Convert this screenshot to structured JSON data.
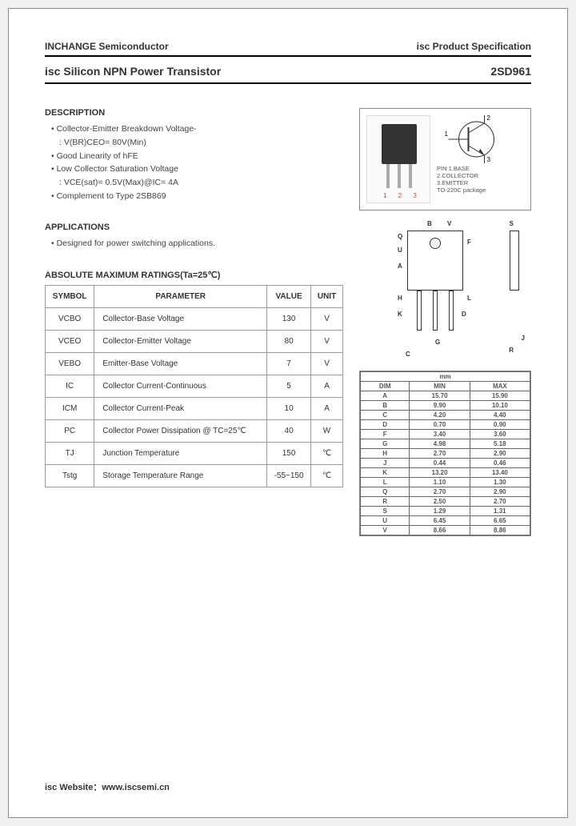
{
  "header": {
    "company": "INCHANGE Semiconductor",
    "docType": "isc Product Specification",
    "productTitle": "isc Silicon NPN Power Transistor",
    "partNumber": "2SD961"
  },
  "description": {
    "title": "DESCRIPTION",
    "items": [
      "Collector-Emitter Breakdown Voltage-",
      "V(BR)CEO= 80V(Min)",
      "Good Linearity of hFE",
      "Low Collector Saturation Voltage",
      "VCE(sat)= 0.5V(Max)@IC= 4A",
      "Complement to Type 2SB869"
    ]
  },
  "applications": {
    "title": "APPLICATIONS",
    "items": [
      "Designed for power switching applications."
    ]
  },
  "ratings": {
    "title": "ABSOLUTE MAXIMUM RATINGS(Ta=25℃)",
    "columns": [
      "SYMBOL",
      "PARAMETER",
      "VALUE",
      "UNIT"
    ],
    "rows": [
      {
        "sym": "VCBO",
        "param": "Collector-Base Voltage",
        "value": "130",
        "unit": "V"
      },
      {
        "sym": "VCEO",
        "param": "Collector-Emitter Voltage",
        "value": "80",
        "unit": "V"
      },
      {
        "sym": "VEBO",
        "param": "Emitter-Base Voltage",
        "value": "7",
        "unit": "V"
      },
      {
        "sym": "IC",
        "param": "Collector Current-Continuous",
        "value": "5",
        "unit": "A"
      },
      {
        "sym": "ICM",
        "param": "Collector Current-Peak",
        "value": "10",
        "unit": "A"
      },
      {
        "sym": "PC",
        "param": "Collector Power Dissipation @ TC=25℃",
        "value": "40",
        "unit": "W"
      },
      {
        "sym": "TJ",
        "param": "Junction Temperature",
        "value": "150",
        "unit": "℃"
      },
      {
        "sym": "Tstg",
        "param": "Storage Temperature Range",
        "value": "-55~150",
        "unit": "℃"
      }
    ]
  },
  "pinout": {
    "pins": "1  2  3",
    "labels": [
      "PIN 1.BASE",
      "2.COLLECTOR",
      "3.EMITTER",
      "TO-220C package"
    ]
  },
  "dimensions": {
    "header": "mm",
    "columns": [
      "DIM",
      "MIN",
      "MAX"
    ],
    "rows": [
      {
        "d": "A",
        "min": "15.70",
        "max": "15.90"
      },
      {
        "d": "B",
        "min": "9.90",
        "max": "10.10"
      },
      {
        "d": "C",
        "min": "4.20",
        "max": "4.40"
      },
      {
        "d": "D",
        "min": "0.70",
        "max": "0.90"
      },
      {
        "d": "F",
        "min": "3.40",
        "max": "3.60"
      },
      {
        "d": "G",
        "min": "4.98",
        "max": "5.18"
      },
      {
        "d": "H",
        "min": "2.70",
        "max": "2.90"
      },
      {
        "d": "J",
        "min": "0.44",
        "max": "0.46"
      },
      {
        "d": "K",
        "min": "13.20",
        "max": "13.40"
      },
      {
        "d": "L",
        "min": "1.10",
        "max": "1.30"
      },
      {
        "d": "Q",
        "min": "2.70",
        "max": "2.90"
      },
      {
        "d": "R",
        "min": "2.50",
        "max": "2.70"
      },
      {
        "d": "S",
        "min": "1.29",
        "max": "1.31"
      },
      {
        "d": "U",
        "min": "6.45",
        "max": "6.65"
      },
      {
        "d": "V",
        "min": "8.66",
        "max": "8.86"
      }
    ]
  },
  "footer": {
    "websiteLabel": "isc Website：",
    "websiteUrl": "www.iscsemi.cn"
  }
}
